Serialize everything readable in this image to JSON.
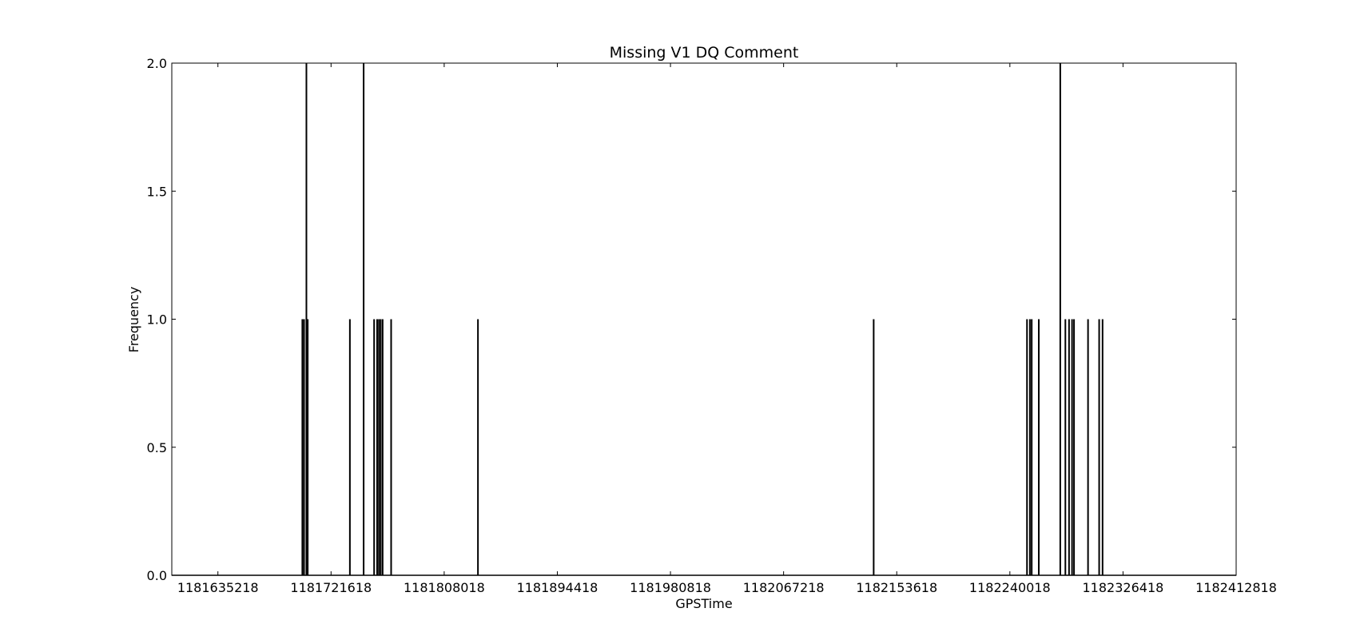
{
  "chart_data": {
    "type": "bar",
    "title": "Missing V1 DQ Comment",
    "xlabel": "GPSTime",
    "ylabel": "Frequency",
    "xlim": [
      1181600000,
      1182412818
    ],
    "ylim": [
      0.0,
      2.0
    ],
    "xticks": [
      1181635218,
      1181721618,
      1181808018,
      1181894418,
      1181980818,
      1182067218,
      1182153618,
      1182240018,
      1182326418,
      1182412818
    ],
    "xtick_labels": [
      "1181635218",
      "1181721618",
      "1181808018",
      "1181894418",
      "1181980818",
      "1182067218",
      "1182153618",
      "1182240018",
      "1182326418",
      "1182412818"
    ],
    "yticks": [
      0.0,
      0.5,
      1.0,
      1.5,
      2.0
    ],
    "ytick_labels": [
      "0.0",
      "0.5",
      "1.0",
      "1.5",
      "2.0"
    ],
    "grid": false,
    "bar_color": "#000000",
    "series": [
      {
        "x": [
          1181699700,
          1181701000,
          1181702800,
          1181703800,
          1181736000,
          1181746500,
          1181754500,
          1181756800,
          1181758200,
          1181759500,
          1181761000,
          1181767500,
          1181833800,
          1182136000,
          1182253100,
          1182255300,
          1182256700,
          1182262100,
          1182278500,
          1182282400,
          1182285200,
          1182287500,
          1182289000,
          1182299700,
          1182308200,
          1182310800
        ],
        "values": [
          1,
          1,
          2,
          1,
          1,
          2,
          1,
          1,
          1,
          1,
          1,
          1,
          1,
          1,
          1,
          1,
          1,
          1,
          2,
          1,
          1,
          1,
          1,
          1,
          1,
          1
        ]
      }
    ]
  }
}
